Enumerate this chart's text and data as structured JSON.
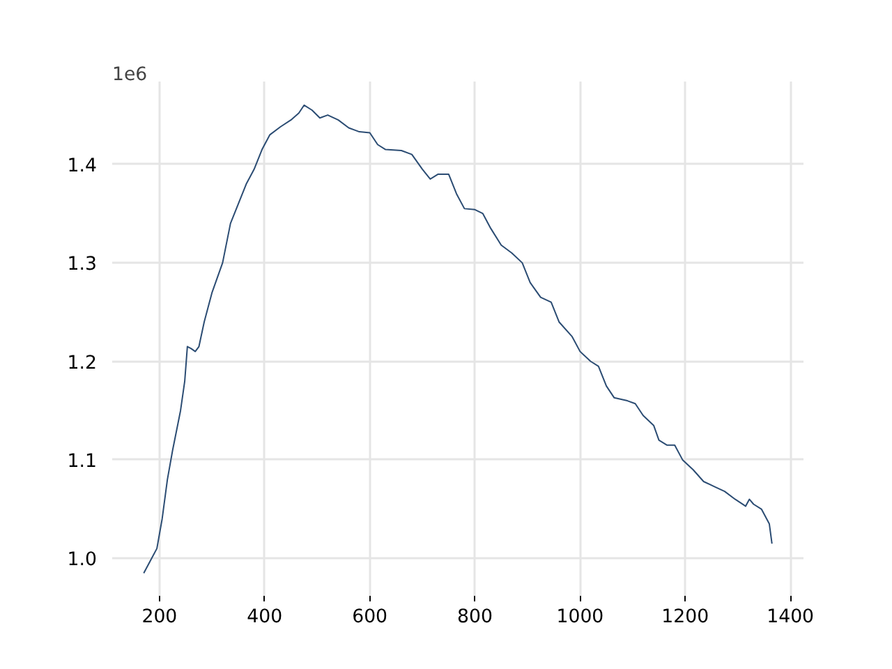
{
  "chart_data": {
    "type": "line",
    "annotations": [
      "1e6"
    ],
    "x": [
      170,
      185,
      195,
      205,
      215,
      225,
      240,
      248,
      253,
      260,
      268,
      275,
      285,
      300,
      320,
      335,
      350,
      365,
      380,
      395,
      410,
      430,
      450,
      465,
      475,
      490,
      505,
      520,
      540,
      560,
      580,
      600,
      615,
      630,
      660,
      680,
      700,
      715,
      730,
      750,
      765,
      780,
      800,
      815,
      830,
      850,
      870,
      890,
      905,
      925,
      945,
      960,
      985,
      1000,
      1020,
      1035,
      1050,
      1065,
      1090,
      1105,
      1120,
      1140,
      1150,
      1165,
      1180,
      1195,
      1215,
      1235,
      1255,
      1275,
      1295,
      1315,
      1322,
      1330,
      1345,
      1360,
      1365
    ],
    "series": [
      {
        "color": "#2b4c73",
        "values": [
          0.985,
          1.0,
          1.01,
          1.04,
          1.08,
          1.11,
          1.15,
          1.18,
          1.215,
          1.213,
          1.21,
          1.215,
          1.24,
          1.27,
          1.3,
          1.34,
          1.36,
          1.38,
          1.395,
          1.415,
          1.43,
          1.438,
          1.445,
          1.452,
          1.46,
          1.455,
          1.447,
          1.45,
          1.445,
          1.437,
          1.433,
          1.432,
          1.42,
          1.415,
          1.414,
          1.41,
          1.395,
          1.385,
          1.39,
          1.39,
          1.37,
          1.355,
          1.354,
          1.35,
          1.335,
          1.318,
          1.31,
          1.3,
          1.28,
          1.265,
          1.26,
          1.24,
          1.225,
          1.21,
          1.2,
          1.195,
          1.175,
          1.163,
          1.16,
          1.157,
          1.145,
          1.135,
          1.12,
          1.115,
          1.115,
          1.1,
          1.09,
          1.078,
          1.073,
          1.068,
          1.06,
          1.053,
          1.06,
          1.055,
          1.05,
          1.035,
          1.015
        ]
      }
    ],
    "xlim": [
      110,
      1425
    ],
    "ylim": [
      0.962,
      1.484
    ],
    "xticks": [
      200,
      400,
      600,
      800,
      1000,
      1200,
      1400
    ],
    "yticks": [
      {
        "value": 1,
        "label": "1.0"
      },
      1.1,
      1.2,
      1.3,
      1.4
    ],
    "grid": true,
    "line_style": "solid",
    "marker": "none"
  }
}
